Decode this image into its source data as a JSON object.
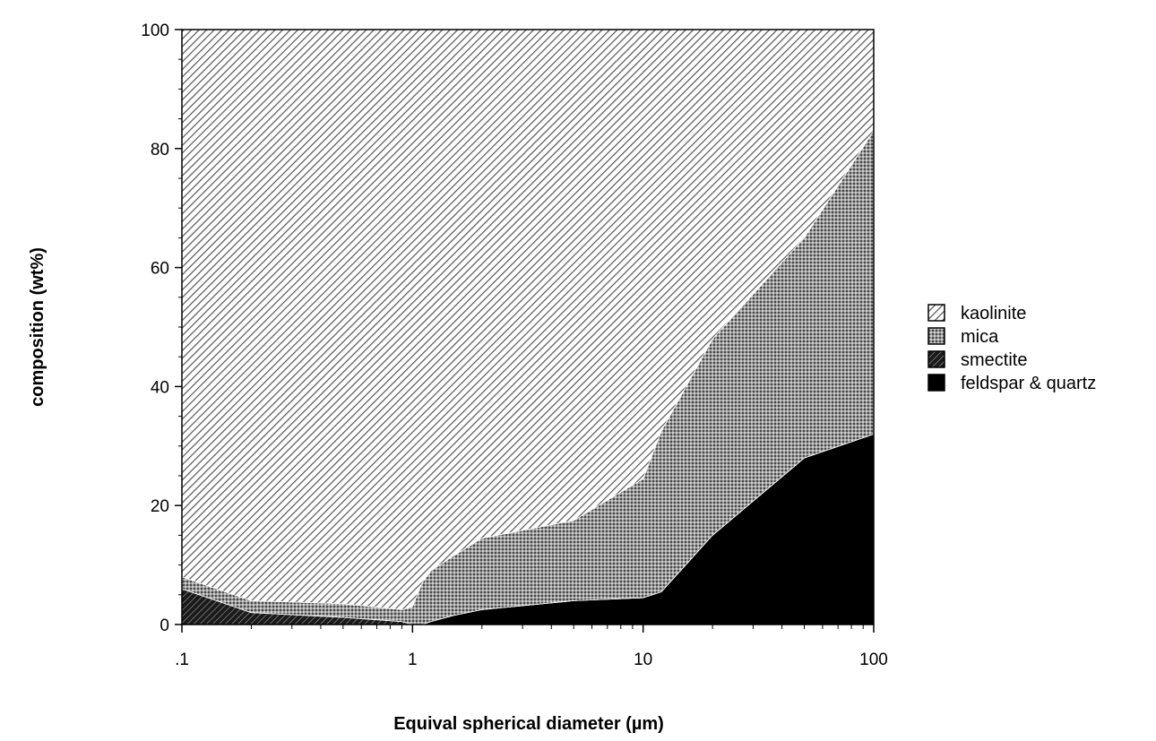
{
  "chart_data": {
    "type": "area",
    "stacked": true,
    "xscale": "log",
    "x": [
      0.1,
      0.2,
      0.5,
      0.9,
      1,
      1.1,
      1.2,
      1.5,
      2,
      5,
      10,
      12,
      20,
      50,
      100
    ],
    "xlim": [
      0.1,
      100
    ],
    "ylim": [
      0,
      100
    ],
    "xticks": [
      {
        "value": 0.1,
        "label": ".1"
      },
      {
        "value": 1,
        "label": "1"
      },
      {
        "value": 10,
        "label": "10"
      },
      {
        "value": 100,
        "label": "100"
      }
    ],
    "yticks": [
      {
        "value": 0,
        "label": "0"
      },
      {
        "value": 20,
        "label": "20"
      },
      {
        "value": 40,
        "label": "40"
      },
      {
        "value": 60,
        "label": "60"
      },
      {
        "value": 80,
        "label": "80"
      },
      {
        "value": 100,
        "label": "100"
      }
    ],
    "xlabel": "Equival spherical diameter (µm)",
    "ylabel": "composition (wt%)",
    "grid": false,
    "legend_position": "right",
    "series": [
      {
        "name": "feldspar & quartz",
        "pattern": "solid",
        "color": "#000000",
        "values": [
          0,
          0,
          0,
          0,
          0,
          0,
          0.5,
          1.5,
          2.5,
          4,
          4.5,
          5.5,
          15,
          28,
          32
        ]
      },
      {
        "name": "smectite",
        "pattern": "diagonal-dense",
        "color": "#222222",
        "values": [
          6,
          2,
          1.2,
          0.5,
          0,
          0,
          0,
          0,
          0,
          0,
          0,
          0,
          0,
          0,
          0
        ]
      },
      {
        "name": "mica",
        "pattern": "stipple",
        "color": "#777777",
        "values": [
          2,
          2,
          2.3,
          2,
          3,
          7,
          8.5,
          10,
          12,
          13.5,
          20,
          27,
          33,
          37,
          51
        ]
      },
      {
        "name": "kaolinite",
        "pattern": "diagonal",
        "color": "#666666",
        "values": [
          92,
          96,
          96.5,
          97.5,
          97,
          93,
          91,
          88.5,
          85.5,
          82.5,
          75.5,
          67.5,
          52,
          35,
          17
        ]
      }
    ],
    "legend_order": [
      "kaolinite",
      "mica",
      "smectite",
      "feldspar & quartz"
    ]
  }
}
